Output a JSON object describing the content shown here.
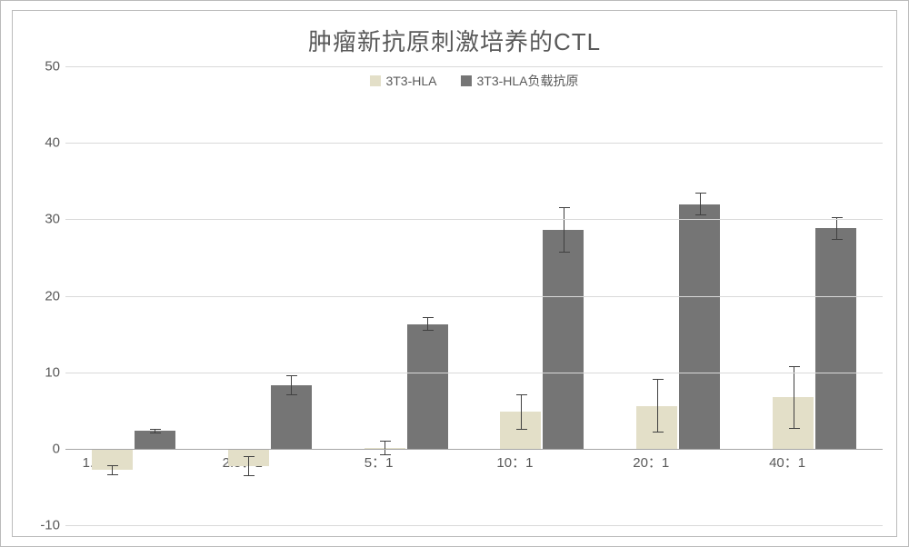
{
  "chart": {
    "type": "bar",
    "title": "肿瘤新抗原刺激培养的CTL",
    "title_fontsize": 26,
    "title_color": "#595959",
    "background_color": "#ffffff",
    "grid_color": "#d9d9d9",
    "zero_line_color": "#a6a6a6",
    "label_color": "#595959",
    "label_fontsize": 15,
    "ylim": [
      -10,
      50
    ],
    "ytick_step": 10,
    "yticks": [
      -10,
      0,
      10,
      20,
      30,
      40,
      50
    ],
    "categories": [
      "1.25：1",
      "2.5：1",
      "5：1",
      "10：1",
      "20：1",
      "40：1"
    ],
    "series": [
      {
        "name": "3T3-HLA",
        "color": "#e3dfc8",
        "bar_width_frac": 0.3,
        "values": [
          -2.8,
          -2.3,
          0.1,
          4.8,
          5.6,
          6.7
        ],
        "err": [
          0.7,
          1.3,
          1.0,
          2.3,
          3.5,
          4.1
        ]
      },
      {
        "name": "3T3-HLA负载抗原",
        "color": "#757575",
        "bar_width_frac": 0.3,
        "values": [
          2.3,
          8.3,
          16.3,
          28.6,
          32.0,
          28.8
        ],
        "err": [
          0.3,
          1.3,
          0.9,
          3.0,
          1.5,
          1.5
        ]
      }
    ],
    "legend": {
      "position": "top",
      "fontsize": 14
    },
    "error_bar_color": "#404040"
  }
}
